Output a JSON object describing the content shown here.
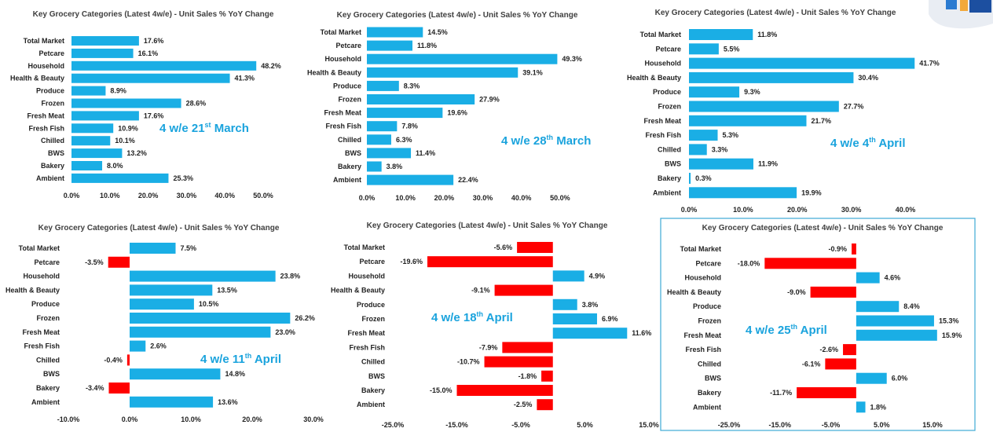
{
  "colors": {
    "positive": "#1aaee5",
    "negative": "#ff0000",
    "period_text": "#1aa3dd",
    "frame": "#3ea9d5"
  },
  "logo_icon": "brand-logo",
  "chart_data": [
    {
      "type": "bar",
      "orientation": "horizontal",
      "title": "Key Grocery Categories (Latest 4w/e) - Unit Sales % YoY Change",
      "categories": [
        "Total Market",
        "Petcare",
        "Household",
        "Health & Beauty",
        "Produce",
        "Frozen",
        "Fresh Meat",
        "Fresh Fish",
        "Chilled",
        "BWS",
        "Bakery",
        "Ambient"
      ],
      "values": [
        17.6,
        16.1,
        48.2,
        41.3,
        8.9,
        28.6,
        17.6,
        10.9,
        10.1,
        13.2,
        8.0,
        25.3
      ],
      "value_labels": [
        "17.6%",
        "16.1%",
        "48.2%",
        "41.3%",
        "8.9%",
        "28.6%",
        "17.6%",
        "10.9%",
        "10.1%",
        "13.2%",
        "8.0%",
        "25.3%"
      ],
      "xlim": [
        0,
        50
      ],
      "ticks": [
        {
          "v": 0,
          "label": "0.0%"
        },
        {
          "v": 10,
          "label": "10.0%"
        },
        {
          "v": 20,
          "label": "20.0%"
        },
        {
          "v": 30,
          "label": "30.0%"
        },
        {
          "v": 40,
          "label": "40.0%"
        },
        {
          "v": 50,
          "label": "50.0%"
        }
      ],
      "period_main": "4 w/e 21",
      "period_sup": "st",
      "period_end": " March"
    },
    {
      "type": "bar",
      "orientation": "horizontal",
      "title": "Key Grocery Categories (Latest 4w/e) - Unit Sales % YoY Change",
      "categories": [
        "Total Market",
        "Petcare",
        "Household",
        "Health & Beauty",
        "Produce",
        "Frozen",
        "Fresh Meat",
        "Fresh Fish",
        "Chilled",
        "BWS",
        "Bakery",
        "Ambient"
      ],
      "values": [
        14.5,
        11.8,
        49.3,
        39.1,
        8.3,
        27.9,
        19.6,
        7.8,
        6.3,
        11.4,
        3.8,
        22.4
      ],
      "value_labels": [
        "14.5%",
        "11.8%",
        "49.3%",
        "39.1%",
        "8.3%",
        "27.9%",
        "19.6%",
        "7.8%",
        "6.3%",
        "11.4%",
        "3.8%",
        "22.4%"
      ],
      "xlim": [
        0,
        60
      ],
      "ticks": [
        {
          "v": 0,
          "label": "0.0%"
        },
        {
          "v": 10,
          "label": "10.0%"
        },
        {
          "v": 20,
          "label": "20.0%"
        },
        {
          "v": 30,
          "label": "30.0%"
        },
        {
          "v": 40,
          "label": "40.0%"
        },
        {
          "v": 50,
          "label": "50.0%"
        }
      ],
      "period_main": "4 w/e 28",
      "period_sup": "th",
      "period_end": " March"
    },
    {
      "type": "bar",
      "orientation": "horizontal",
      "title": "Key Grocery Categories (Latest 4w/e) - Unit Sales % YoY Change",
      "categories": [
        "Total Market",
        "Petcare",
        "Household",
        "Health & Beauty",
        "Produce",
        "Frozen",
        "Fresh Meat",
        "Fresh Fish",
        "Chilled",
        "BWS",
        "Bakery",
        "Ambient"
      ],
      "values": [
        11.8,
        5.5,
        41.7,
        30.4,
        9.3,
        27.7,
        21.7,
        5.3,
        3.3,
        11.9,
        0.3,
        19.9
      ],
      "value_labels": [
        "11.8%",
        "5.5%",
        "41.7%",
        "30.4%",
        "9.3%",
        "27.7%",
        "21.7%",
        "5.3%",
        "3.3%",
        "11.9%",
        "0.3%",
        "19.9%"
      ],
      "xlim": [
        0,
        45
      ],
      "ticks": [
        {
          "v": 0,
          "label": "0.0%"
        },
        {
          "v": 10,
          "label": "10.0%"
        },
        {
          "v": 20,
          "label": "20.0%"
        },
        {
          "v": 30,
          "label": "30.0%"
        },
        {
          "v": 40,
          "label": "40.0%"
        }
      ],
      "period_main": "4 w/e 4",
      "period_sup": "th",
      "period_end": " April"
    },
    {
      "type": "bar",
      "orientation": "horizontal",
      "title": "Key Grocery Categories (Latest 4w/e) - Unit Sales % YoY Change",
      "categories": [
        "Total Market",
        "Petcare",
        "Household",
        "Health & Beauty",
        "Produce",
        "Frozen",
        "Fresh Meat",
        "Fresh Fish",
        "Chilled",
        "BWS",
        "Bakery",
        "Ambient"
      ],
      "values": [
        7.5,
        -3.5,
        23.8,
        13.5,
        10.5,
        26.2,
        23.0,
        2.6,
        -0.4,
        14.8,
        -3.4,
        13.6
      ],
      "value_labels": [
        "7.5%",
        "-3.5%",
        "23.8%",
        "13.5%",
        "10.5%",
        "26.2%",
        "23.0%",
        "2.6%",
        "-0.4%",
        "14.8%",
        "-3.4%",
        "13.6%"
      ],
      "xlim": [
        -10,
        30
      ],
      "ticks": [
        {
          "v": -10,
          "label": "-10.0%"
        },
        {
          "v": 0,
          "label": "0.0%"
        },
        {
          "v": 10,
          "label": "10.0%"
        },
        {
          "v": 20,
          "label": "20.0%"
        },
        {
          "v": 30,
          "label": "30.0%"
        }
      ],
      "period_main": "4 w/e 11",
      "period_sup": "th",
      "period_end": " April"
    },
    {
      "type": "bar",
      "orientation": "horizontal",
      "title": "Key Grocery Categories (Latest 4w/e) - Unit Sales % YoY Change",
      "categories": [
        "Total Market",
        "Petcare",
        "Household",
        "Health & Beauty",
        "Produce",
        "Frozen",
        "Fresh Meat",
        "Fresh Fish",
        "Chilled",
        "BWS",
        "Bakery",
        "Ambient"
      ],
      "values": [
        -5.6,
        -19.6,
        4.9,
        -9.1,
        3.8,
        6.9,
        11.6,
        -7.9,
        -10.7,
        -1.8,
        -15.0,
        -2.5
      ],
      "value_labels": [
        "-5.6%",
        "-19.6%",
        "4.9%",
        "-9.1%",
        "3.8%",
        "6.9%",
        "11.6%",
        "-7.9%",
        "-10.7%",
        "-1.8%",
        "-15.0%",
        "-2.5%"
      ],
      "xlim": [
        -25,
        15
      ],
      "ticks": [
        {
          "v": -25,
          "label": "-25.0%"
        },
        {
          "v": -15,
          "label": "-15.0%"
        },
        {
          "v": -5,
          "label": "-5.0%"
        },
        {
          "v": 5,
          "label": "5.0%"
        },
        {
          "v": 15,
          "label": "15.0%"
        }
      ],
      "period_main": "4 w/e 18",
      "period_sup": "th",
      "period_end": " April"
    },
    {
      "type": "bar",
      "orientation": "horizontal",
      "title": "Key Grocery Categories (Latest 4w/e) - Unit Sales % YoY Change",
      "categories": [
        "Total Market",
        "Petcare",
        "Household",
        "Health & Beauty",
        "Produce",
        "Frozen",
        "Fresh Meat",
        "Fresh Fish",
        "Chilled",
        "BWS",
        "Bakery",
        "Ambient"
      ],
      "values": [
        -0.9,
        -18.0,
        4.6,
        -9.0,
        8.4,
        15.3,
        15.9,
        -2.6,
        -6.1,
        6.0,
        -11.7,
        1.8
      ],
      "value_labels": [
        "-0.9%",
        "-18.0%",
        "4.6%",
        "-9.0%",
        "8.4%",
        "15.3%",
        "15.9%",
        "-2.6%",
        "-6.1%",
        "6.0%",
        "-11.7%",
        "1.8%"
      ],
      "xlim": [
        -25,
        15
      ],
      "ticks": [
        {
          "v": -25,
          "label": "-25.0%"
        },
        {
          "v": -15,
          "label": "-15.0%"
        },
        {
          "v": -5,
          "label": "-5.0%"
        },
        {
          "v": 5,
          "label": "5.0%"
        },
        {
          "v": 15,
          "label": "15.0%"
        }
      ],
      "period_main": "4 w/e 25",
      "period_sup": "th",
      "period_end": " April"
    }
  ]
}
